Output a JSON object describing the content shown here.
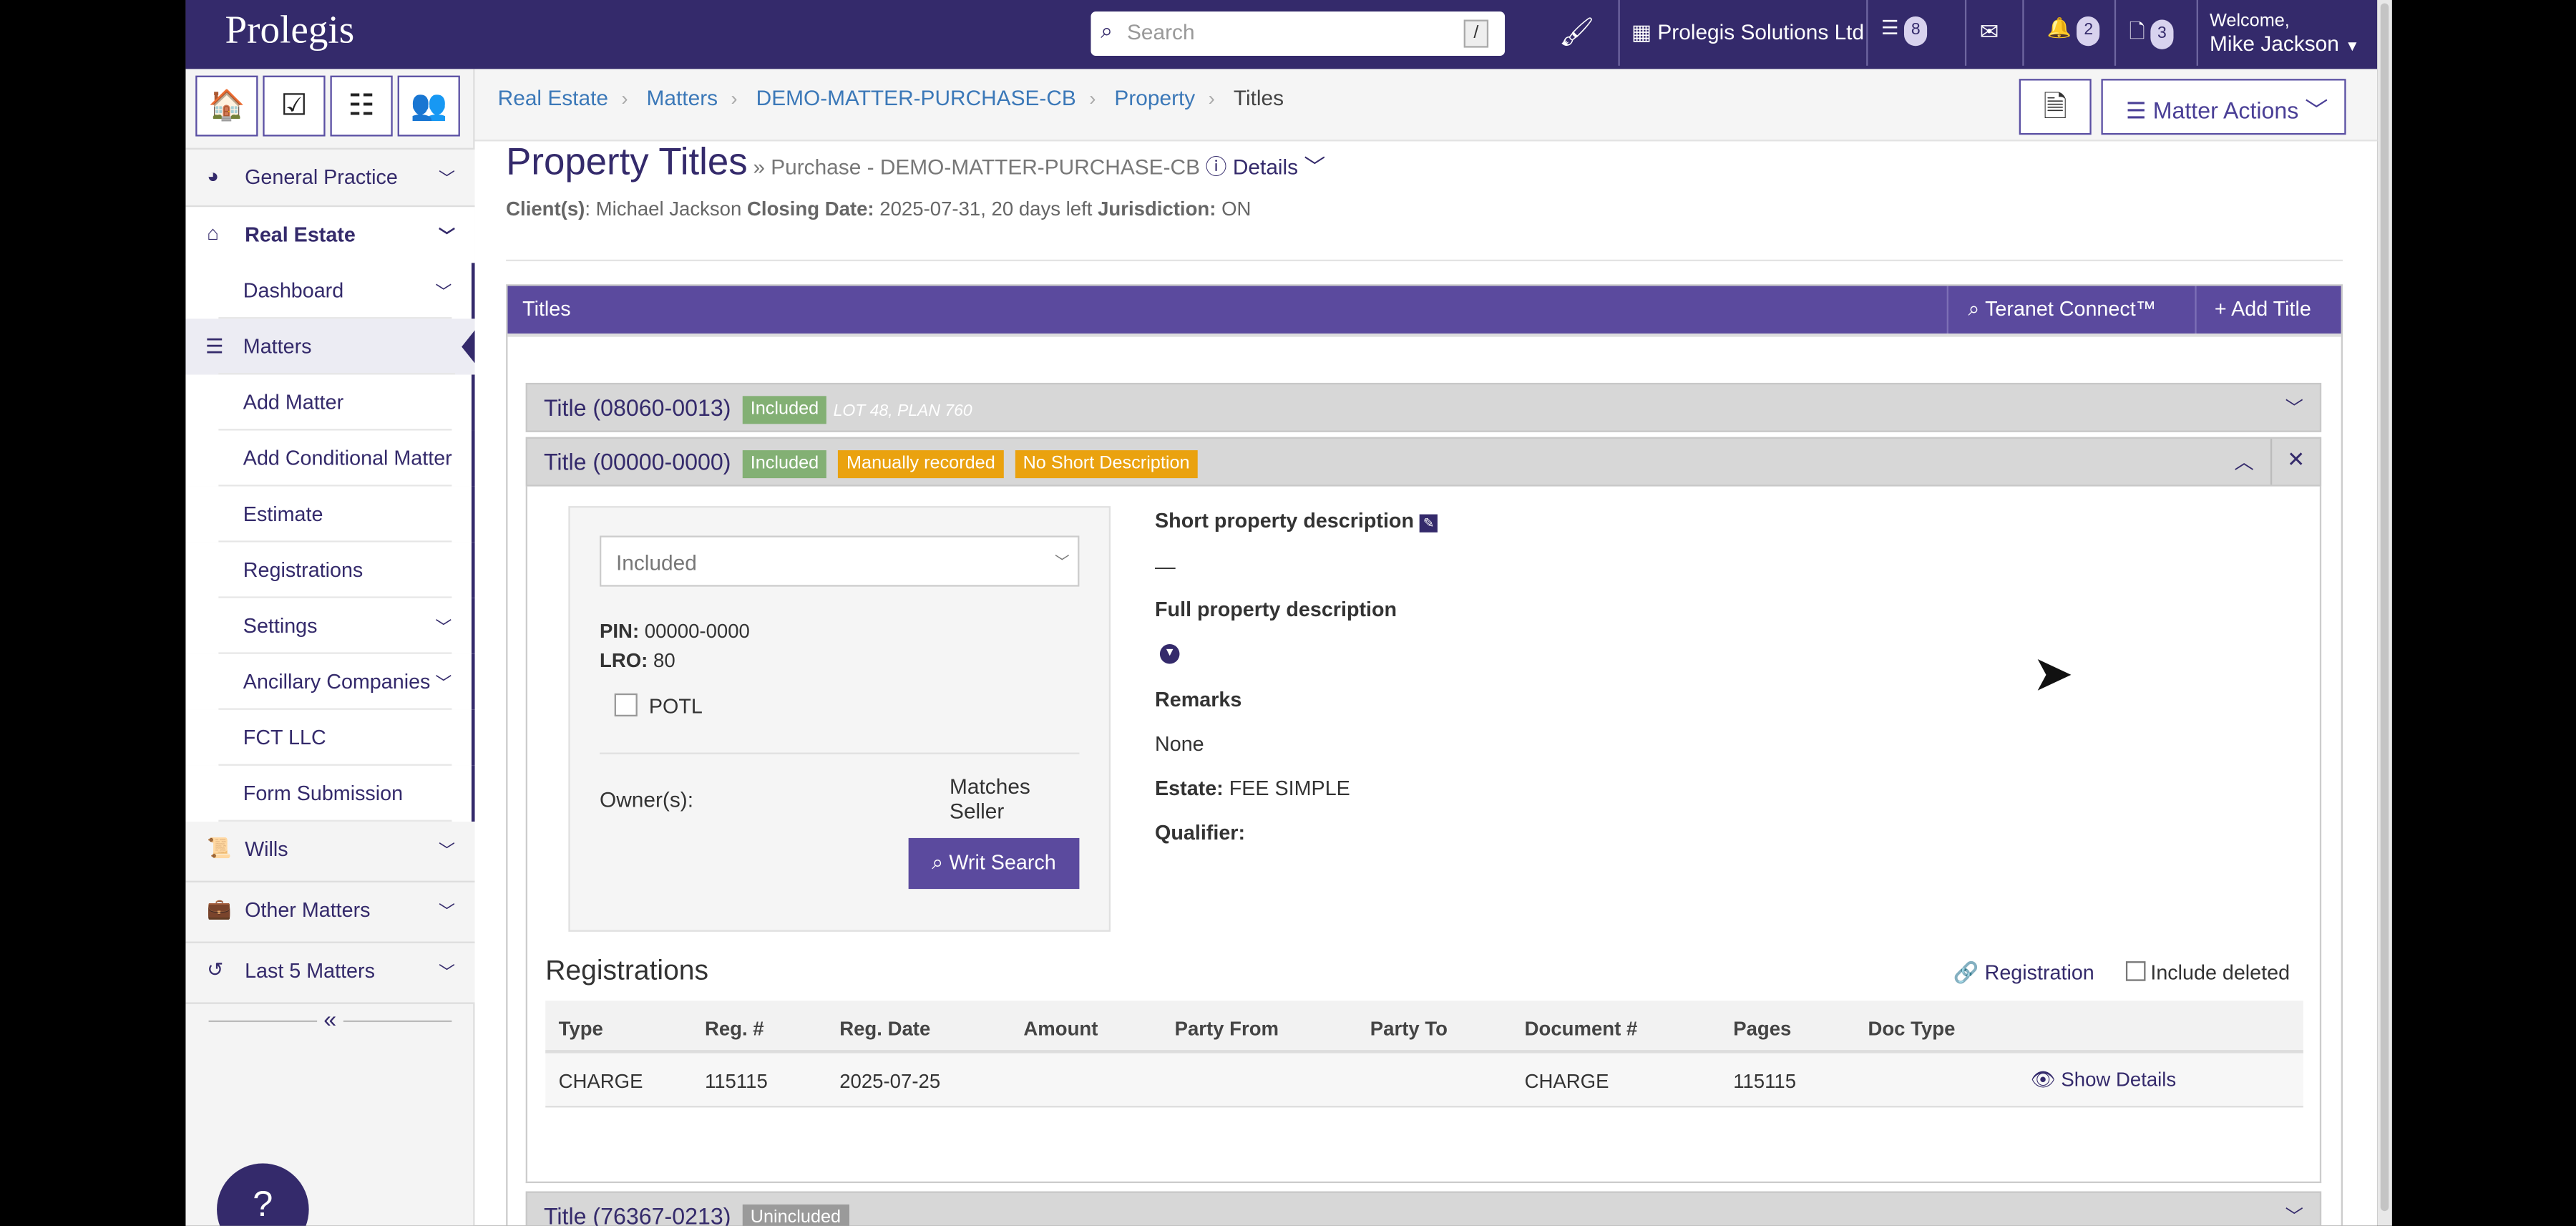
{
  "topbar": {
    "logo": "Prolegis",
    "search_placeholder": "Search",
    "search_shortcut": "/",
    "firm": "Prolegis Solutions Ltd",
    "tasks_count": "8",
    "notifications_count": "2",
    "pdf_count": "3",
    "welcome": "Welcome,",
    "user": "Mike Jackson"
  },
  "breadcrumb": [
    "Real Estate",
    "Matters",
    "DEMO-MATTER-PURCHASE-CB",
    "Property",
    "Titles"
  ],
  "header_actions": {
    "matter_actions": "Matter Actions"
  },
  "sidebar": {
    "sections": [
      {
        "label": "General Practice"
      },
      {
        "label": "Real Estate"
      },
      {
        "label": "Wills"
      },
      {
        "label": "Other Matters"
      },
      {
        "label": "Last 5 Matters"
      }
    ],
    "real_estate_items": [
      "Dashboard",
      "Matters",
      "Add Matter",
      "Add Conditional Matter",
      "Estimate",
      "Registrations",
      "Settings",
      "Ancillary Companies",
      "FCT LLC",
      "Form Submission"
    ],
    "collapse": "«"
  },
  "page": {
    "title": "Property Titles",
    "subtitle": "Purchase - DEMO-MATTER-PURCHASE-CB",
    "details": "Details",
    "client_label": "Client(s)",
    "client": "Michael Jackson",
    "closing_label": "Closing Date:",
    "closing": "2025-07-31, 20 days left",
    "jurisdiction_label": "Jurisdiction:",
    "jurisdiction": "ON"
  },
  "titles_panel": {
    "header": "Titles",
    "teranet": "Teranet Connect™",
    "add_title": "Add Title",
    "titles": [
      {
        "label": "Title (08060-0013)",
        "badges": [
          "Included"
        ],
        "note": "LOT 48, PLAN 760"
      },
      {
        "label": "Title (00000-0000)",
        "badges": [
          "Included",
          "Manually recorded",
          "No Short Description"
        ]
      },
      {
        "label": "Title (76367-0213)",
        "badges": [
          "Unincluded"
        ]
      }
    ]
  },
  "detail": {
    "status_select": "Included",
    "pin_label": "PIN:",
    "pin": "00000-0000",
    "lro_label": "LRO:",
    "lro": "80",
    "potl": "POTL",
    "owners_label": "Owner(s):",
    "matches_seller": "Matches Seller",
    "writ_search": "Writ Search",
    "short_desc_label": "Short property description",
    "short_desc": "—",
    "full_desc_label": "Full property description",
    "remarks_label": "Remarks",
    "remarks": "None",
    "estate_label": "Estate:",
    "estate": "FEE SIMPLE",
    "qualifier_label": "Qualifier:"
  },
  "registrations": {
    "title": "Registrations",
    "add_link": "Registration",
    "include_deleted": "Include deleted",
    "columns": [
      "Type",
      "Reg. #",
      "Reg. Date",
      "Amount",
      "Party From",
      "Party To",
      "Document #",
      "Pages",
      "Doc Type"
    ],
    "rows": [
      {
        "type": "CHARGE",
        "reg": "115115",
        "date": "2025-07-25",
        "amount": "",
        "from": "",
        "to": "",
        "doc": "CHARGE",
        "pages": "115115",
        "doctype": "",
        "action": "Show Details"
      }
    ]
  },
  "colors": {
    "brand": "#342a6b",
    "panel_header": "#5b4a9e",
    "included": "#83b074",
    "warning": "#eaa20f"
  }
}
